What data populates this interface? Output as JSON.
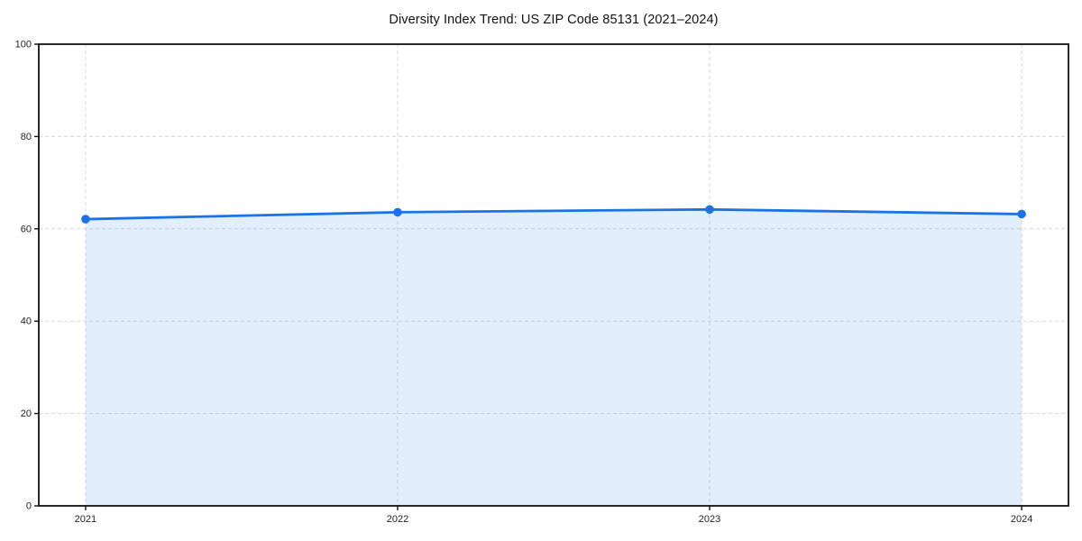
{
  "chart_data": {
    "type": "line",
    "title": "Diversity Index Trend: US ZIP Code 85131 (2021–2024)",
    "series": [
      {
        "name": "Diversity Index",
        "x": [
          2021,
          2022,
          2023,
          2024
        ],
        "values": [
          62.1,
          63.6,
          64.2,
          63.2
        ]
      }
    ],
    "xlabel": "",
    "ylabel": "",
    "xticks": [
      2021,
      2022,
      2023,
      2024
    ],
    "yticks": [
      0,
      20,
      40,
      60,
      80,
      100
    ],
    "ylim": [
      0,
      100
    ],
    "x_margin_fraction": 0.05,
    "grid": true,
    "grid_style": "dashed",
    "area_fill": true,
    "legend_position": "none",
    "colors": {
      "line": "#1a73e8",
      "marker": "#1a73e8",
      "fill": "rgba(26,115,232,0.12)",
      "grid": "#d8d8d8",
      "spine": "#111111",
      "tick_text": "#222222",
      "background": "#ffffff"
    }
  }
}
